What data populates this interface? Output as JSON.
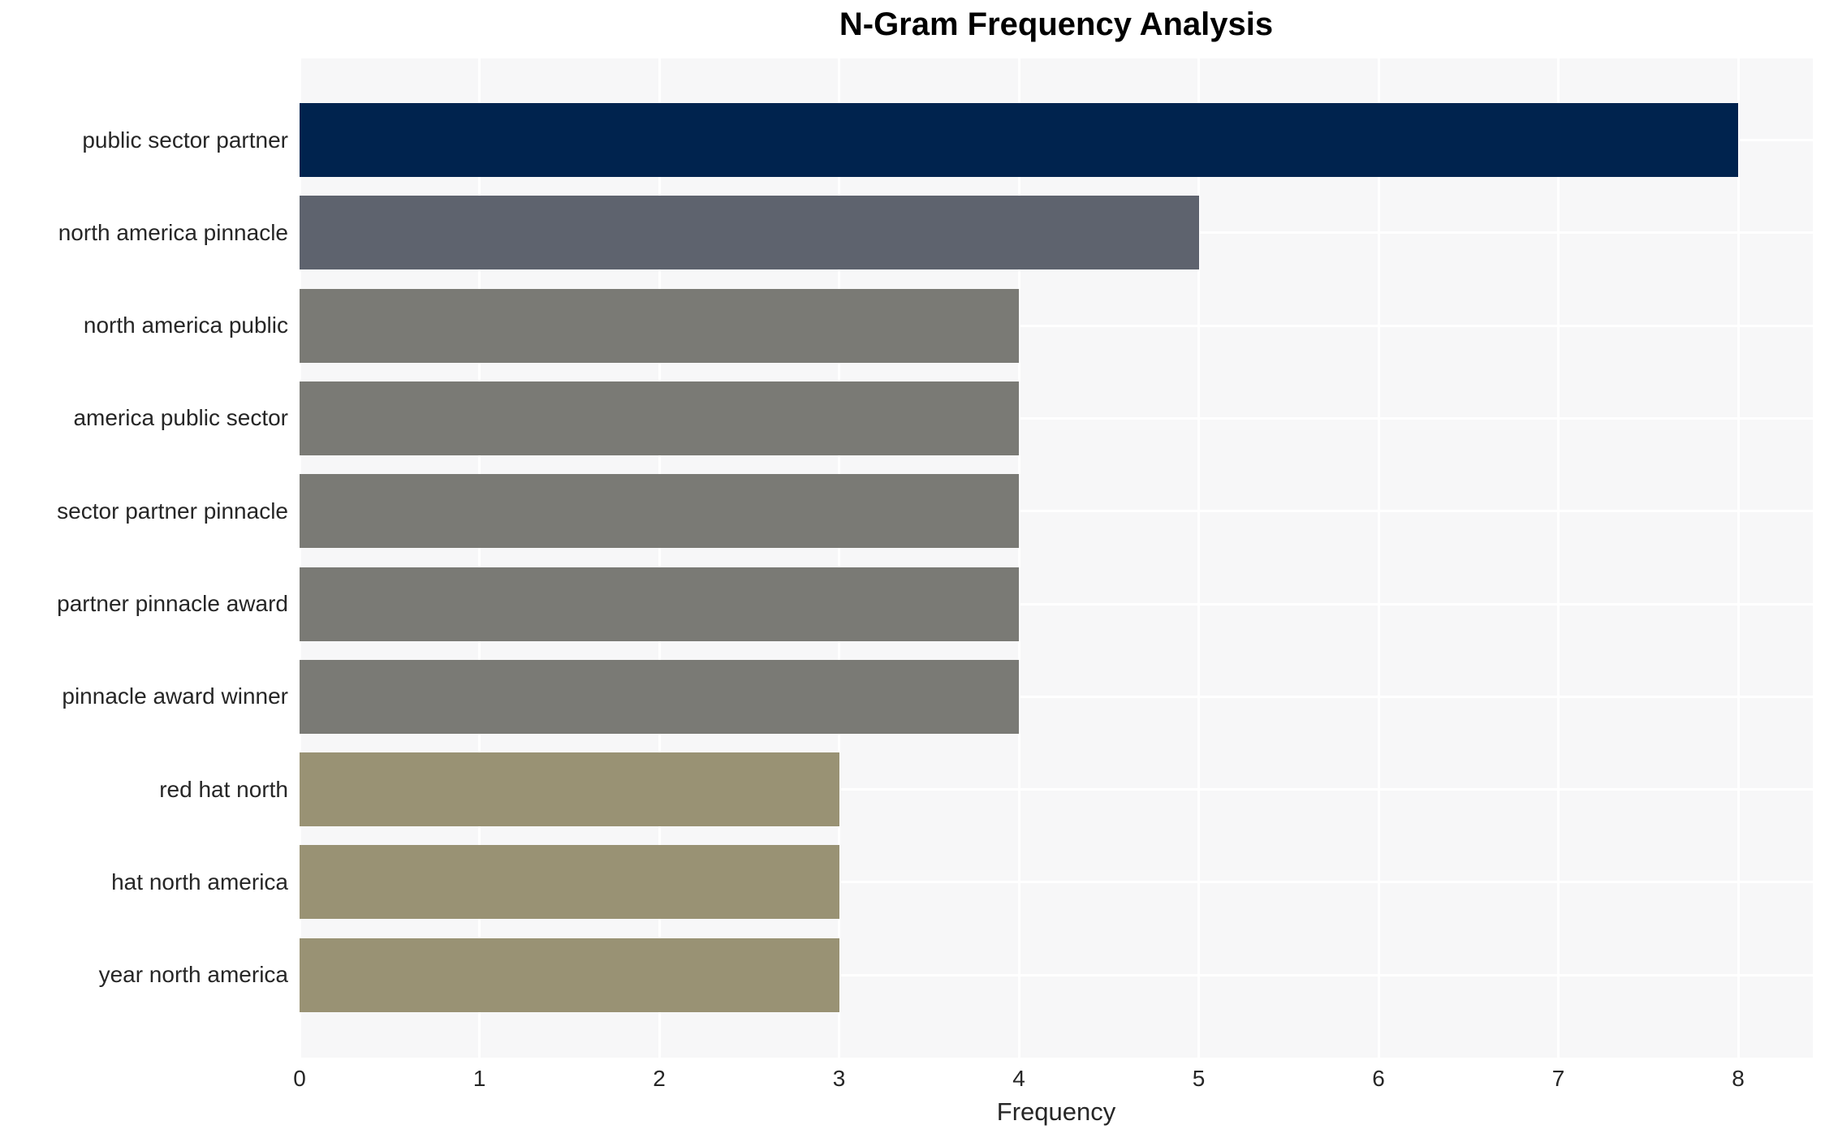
{
  "title": "N-Gram Frequency Analysis",
  "chart_data": {
    "type": "bar",
    "orientation": "horizontal",
    "title": "N-Gram Frequency Analysis",
    "xlabel": "Frequency",
    "ylabel": "",
    "categories": [
      "public sector partner",
      "north america pinnacle",
      "north america public",
      "america public sector",
      "sector partner pinnacle",
      "partner pinnacle award",
      "pinnacle award winner",
      "red hat north",
      "hat north america",
      "year north america"
    ],
    "values": [
      8,
      5,
      4,
      4,
      4,
      4,
      4,
      3,
      3,
      3
    ],
    "bar_colors": [
      "#00234e",
      "#5e636e",
      "#7a7a75",
      "#7a7a75",
      "#7a7a75",
      "#7a7a75",
      "#7a7a75",
      "#999274",
      "#999274",
      "#999274"
    ],
    "xticks": [
      0,
      1,
      2,
      3,
      4,
      5,
      6,
      7,
      8
    ],
    "xlim": [
      0,
      8.4
    ],
    "grid": true,
    "legend": "none",
    "colors": {
      "plot_background": "#f7f7f8",
      "gridline": "#ffffff",
      "tick_text": "#262626",
      "title_text": "#000000"
    }
  }
}
